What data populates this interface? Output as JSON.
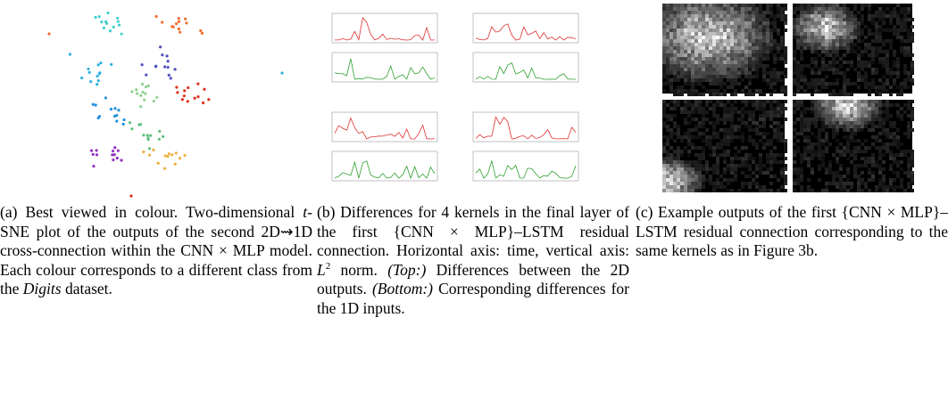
{
  "captions": [
    {
      "text": [
        "(a) Best viewed in colour. Two-dimensional ",
        "t",
        "-SNE plot of the outputs of the second 2D⇝1D cross-connection within the CNN × MLP model. Each colour corresponds to a different class from the ",
        "Digits",
        " dataset."
      ]
    },
    {
      "text": [
        "(b) Differences for 4 kernels in the final layer of the first {CNN × MLP}–LSTM residual connection. Horizontal axis: time, vertical axis: ",
        "L",
        "2",
        " norm. ",
        "(Top:)",
        " Differences between the 2D outputs. ",
        "(Bottom:)",
        " Corresponding differences for the 1D inputs."
      ]
    },
    {
      "text": [
        "(c) Example outputs of the first {CNN × MLP}–LSTM residual connection corresponding to the same kernels as in Figure 3b."
      ]
    }
  ]
}
